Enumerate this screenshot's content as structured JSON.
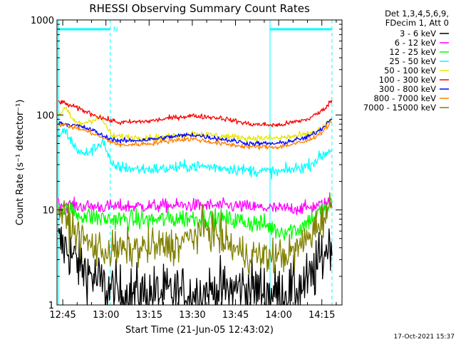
{
  "chart_data": {
    "type": "line",
    "title": "RHESSI Observing Summary Count Rates",
    "xlabel": "Start Time (21-Jun-05 12:43:02)",
    "ylabel": "Count Rate (s⁻¹ detector⁻¹)",
    "y_scale": "log",
    "ylim": [
      1,
      1000
    ],
    "xlim_minutes": [
      -2,
      97
    ],
    "x_ticks": [
      {
        "label": "12:45",
        "minute": 0
      },
      {
        "label": "13:00",
        "minute": 15
      },
      {
        "label": "13:15",
        "minute": 30
      },
      {
        "label": "13:30",
        "minute": 45
      },
      {
        "label": "13:45",
        "minute": 60
      },
      {
        "label": "14:00",
        "minute": 75
      },
      {
        "label": "14:15",
        "minute": 90
      }
    ],
    "y_ticks": [
      {
        "label": "1",
        "value": 1
      },
      {
        "label": "10",
        "value": 10
      },
      {
        "label": "100",
        "value": 100
      },
      {
        "label": "1000",
        "value": 1000
      }
    ],
    "legend_header": [
      "Det 1,3,4,5,6,9,",
      "FDecim 1, Att 0"
    ],
    "legend_placement": "right",
    "night_intervals_minutes": [
      [
        -1.5,
        16.5
      ],
      [
        72,
        93.5
      ]
    ],
    "night_bar_label": "N",
    "series": [
      {
        "name": "3 - 6 keV",
        "color": "#000000",
        "noise": 0.35,
        "x": [
          -1.5,
          2,
          4,
          8,
          12,
          15,
          20,
          30,
          45,
          55,
          62,
          70,
          75,
          80,
          86,
          90,
          93.5
        ],
        "y": [
          4.5,
          3.8,
          3.0,
          2.3,
          1.8,
          1.5,
          1.3,
          1.3,
          1.3,
          1.4,
          1.5,
          1.4,
          1.3,
          1.4,
          1.8,
          3.2,
          5.0
        ]
      },
      {
        "name": "6 - 12 keV",
        "color": "#ff00ff",
        "noise": 0.08,
        "x": [
          -1.5,
          5,
          15,
          30,
          45,
          60,
          75,
          85,
          93.5
        ],
        "y": [
          11.5,
          11,
          10.8,
          11,
          11.2,
          11,
          10.3,
          10.5,
          12
        ]
      },
      {
        "name": "12 - 25 keV",
        "color": "#00ff00",
        "noise": 0.12,
        "x": [
          -1.5,
          5,
          15,
          30,
          45,
          60,
          70,
          75,
          82,
          88,
          93.5
        ],
        "y": [
          10.5,
          9.0,
          8.0,
          7.8,
          8.3,
          7.8,
          7.0,
          6.0,
          6.3,
          9.0,
          11.5
        ]
      },
      {
        "name": "25 - 50 keV",
        "color": "#00ffff",
        "noise": 0.07,
        "x": [
          -1.5,
          1,
          4,
          7,
          11,
          14,
          17,
          25,
          35,
          45,
          55,
          65,
          75,
          85,
          93.5
        ],
        "y": [
          62,
          68,
          47,
          38,
          44,
          54,
          29,
          27,
          27,
          29,
          28,
          26,
          25,
          29,
          44
        ]
      },
      {
        "name": "50 - 100 keV",
        "color": "#e6e600",
        "noise": 0.04,
        "x": [
          -1.5,
          1,
          3,
          6,
          10,
          13,
          15,
          17,
          25,
          35,
          45,
          55,
          65,
          75,
          85,
          90,
          93.5
        ],
        "y": [
          100,
          118,
          92,
          80,
          88,
          94,
          78,
          60,
          58,
          58,
          64,
          60,
          57,
          57,
          62,
          72,
          90
        ]
      },
      {
        "name": "100 - 300 keV",
        "color": "#ff0000",
        "noise": 0.03,
        "x": [
          -1.5,
          5,
          10,
          15,
          20,
          30,
          40,
          45,
          55,
          65,
          75,
          85,
          90,
          93.5
        ],
        "y": [
          140,
          118,
          103,
          90,
          83,
          86,
          95,
          98,
          93,
          80,
          78,
          90,
          110,
          142
        ]
      },
      {
        "name": "300 - 800 keV",
        "color": "#0000ff",
        "noise": 0.03,
        "x": [
          -1.5,
          5,
          10,
          15,
          20,
          30,
          40,
          45,
          55,
          65,
          75,
          85,
          90,
          93.5
        ],
        "y": [
          83,
          77,
          70,
          58,
          53,
          55,
          60,
          62,
          56,
          50,
          50,
          58,
          72,
          93
        ]
      },
      {
        "name": "800 - 7000 keV",
        "color": "#ff8000",
        "noise": 0.03,
        "x": [
          -1.5,
          5,
          10,
          15,
          20,
          30,
          40,
          45,
          55,
          65,
          75,
          85,
          90,
          93.5
        ],
        "y": [
          80,
          73,
          65,
          55,
          48,
          50,
          55,
          56,
          50,
          46,
          46,
          53,
          66,
          86
        ]
      },
      {
        "name": "7000 - 15000 keV",
        "color": "#808000",
        "noise": 0.22,
        "x": [
          -1.5,
          2,
          5,
          10,
          15,
          20,
          30,
          40,
          45,
          50,
          57,
          62,
          70,
          75,
          80,
          85,
          90,
          93.5
        ],
        "y": [
          10.5,
          7.0,
          5.5,
          4.2,
          3.7,
          3.8,
          4.0,
          4.3,
          5.3,
          6.5,
          4.5,
          3.5,
          3.2,
          3.3,
          3.5,
          5.0,
          8.0,
          11
        ]
      }
    ]
  },
  "footer": {
    "date_stamp": "17-Oct-2021 15:37"
  }
}
